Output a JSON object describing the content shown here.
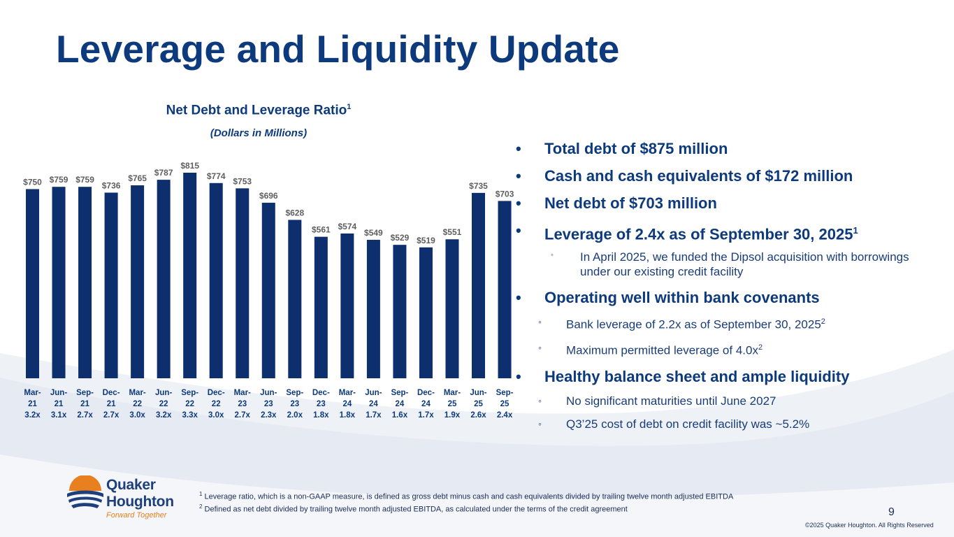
{
  "slide": {
    "title": "Leverage and Liquidity Update",
    "page_number": "9",
    "copyright": "©2025 Quaker Houghton. All Rights Reserved"
  },
  "colors": {
    "navy": "#0d3a7c",
    "bar": "#0d2f6d",
    "label": "#5f5f5f",
    "orange": "#e8801f"
  },
  "logo": {
    "line1": "Quaker",
    "line2": "Houghton",
    "tagline": "Forward Together"
  },
  "chart_data": {
    "type": "bar",
    "title": "Net Debt and Leverage Ratio",
    "title_footnote": "1",
    "subtitle": "(Dollars in Millions)",
    "value_prefix": "$",
    "grid": false,
    "legend": "none",
    "ylim": [
      0,
      815
    ],
    "categories": [
      [
        "Mar-",
        "21",
        "3.2x"
      ],
      [
        "Jun-",
        "21",
        "3.1x"
      ],
      [
        "Sep-",
        "21",
        "2.7x"
      ],
      [
        "Dec-",
        "21",
        "2.7x"
      ],
      [
        "Mar-",
        "22",
        "3.0x"
      ],
      [
        "Jun-",
        "22",
        "3.2x"
      ],
      [
        "Sep-",
        "22",
        "3.3x"
      ],
      [
        "Dec-",
        "22",
        "3.0x"
      ],
      [
        "Mar-",
        "23",
        "2.7x"
      ],
      [
        "Jun-",
        "23",
        "2.3x"
      ],
      [
        "Sep-",
        "23",
        "2.0x"
      ],
      [
        "Dec-",
        "23",
        "1.8x"
      ],
      [
        "Mar-",
        "24",
        "1.8x"
      ],
      [
        "Jun-",
        "24",
        "1.7x"
      ],
      [
        "Sep-",
        "24",
        "1.6x"
      ],
      [
        "Dec-",
        "24",
        "1.7x"
      ],
      [
        "Mar-",
        "25",
        "1.9x"
      ],
      [
        "Jun-",
        "25",
        "2.6x"
      ],
      [
        "Sep-",
        "25",
        "2.4x"
      ]
    ],
    "values": [
      750,
      759,
      759,
      736,
      765,
      787,
      815,
      774,
      753,
      696,
      628,
      561,
      574,
      549,
      529,
      519,
      551,
      735,
      703
    ]
  },
  "bullets": {
    "b1": {
      "text": "Total debt of $875 million"
    },
    "b2": {
      "text": "Cash and cash equivalents of $172 million"
    },
    "b3": {
      "text": "Net debt of $703 million"
    },
    "b4": {
      "text": "Leverage of 2.4x as of September 30, 2025",
      "sup": "1"
    },
    "b4_sub1": {
      "text": "In April 2025, we funded the Dipsol acquisition with borrowings under our existing credit facility"
    },
    "b5": {
      "text": "Operating well within bank covenants"
    },
    "b5_sub1": {
      "text": "Bank leverage of 2.2x as of September 30, 2025",
      "sup": "2"
    },
    "b5_sub2": {
      "text": "Maximum permitted leverage of 4.0x",
      "sup": "2"
    },
    "b6": {
      "text": "Healthy balance sheet and ample liquidity"
    },
    "b6_sub1": {
      "text": "No significant maturities until June 2027"
    },
    "b6_sub2": {
      "text": "Q3’25 cost of debt on credit facility was ~5.2%"
    }
  },
  "footnotes": {
    "f1_num": "1",
    "f1": "Leverage ratio, which is a non-GAAP measure, is defined as gross debt minus cash and cash equivalents divided by trailing twelve month adjusted EBITDA",
    "f2_num": "2",
    "f2": "Defined as net debt divided by trailing twelve month adjusted EBITDA, as calculated under the terms of the credit agreement"
  }
}
